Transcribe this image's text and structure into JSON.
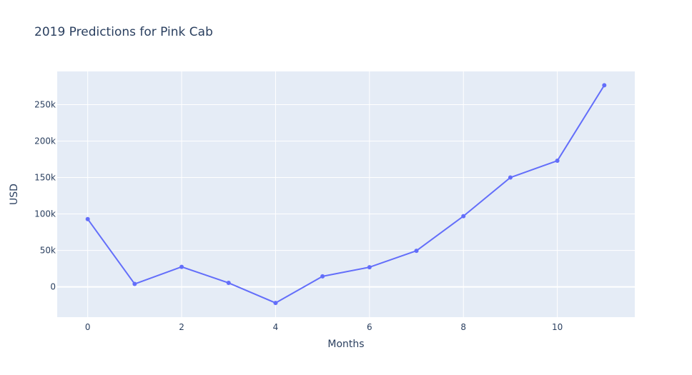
{
  "chart_data": {
    "type": "line",
    "title": "2019 Predictions for Pink Cab",
    "xlabel": "Months",
    "ylabel": "USD",
    "x": [
      0,
      1,
      2,
      3,
      4,
      5,
      6,
      7,
      8,
      9,
      10,
      11
    ],
    "series": [
      {
        "values": [
          93000,
          4000,
          27500,
          5500,
          -22000,
          14500,
          27000,
          49500,
          97000,
          150000,
          173000,
          276500
        ]
      }
    ],
    "xlim": [
      -0.65,
      11.65
    ],
    "ylim": [
      -41500,
      295500
    ],
    "x_ticks": [
      0,
      2,
      4,
      6,
      8,
      10
    ],
    "x_tick_labels": [
      "0",
      "2",
      "4",
      "6",
      "8",
      "10"
    ],
    "y_ticks": [
      0,
      50000,
      100000,
      150000,
      200000,
      250000
    ],
    "y_tick_labels": [
      "0",
      "50k",
      "100k",
      "150k",
      "200k",
      "250k"
    ],
    "grid": true,
    "colors": {
      "line": "#636efa",
      "plot_bg": "#e5ecf6",
      "grid": "#ffffff",
      "text": "#2a3f5f"
    }
  }
}
